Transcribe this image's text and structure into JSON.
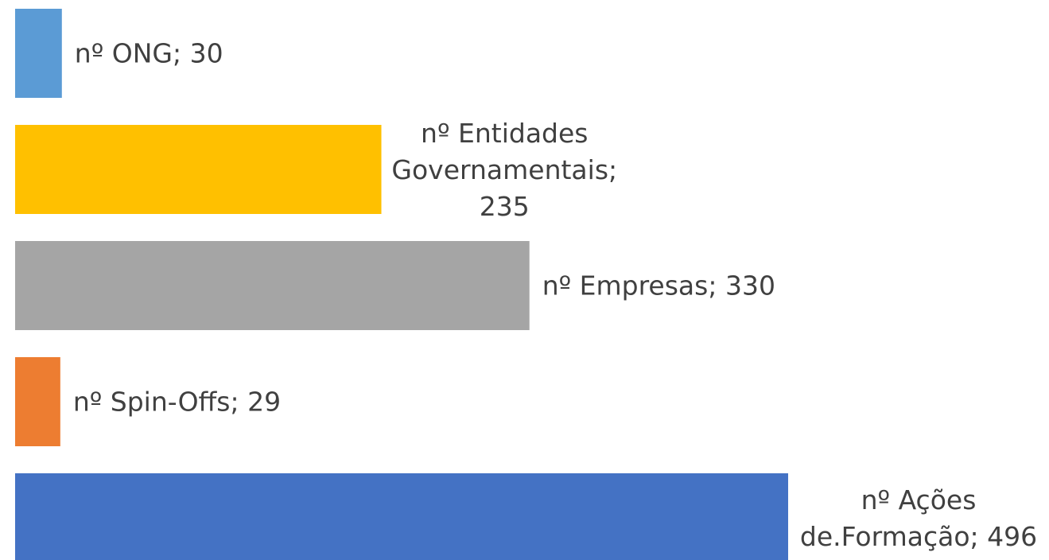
{
  "chart_data": {
    "type": "bar",
    "orientation": "horizontal",
    "title": "",
    "xlabel": "",
    "ylabel": "",
    "axes_visible": false,
    "grid": false,
    "legend": "none",
    "xlim": [
      0,
      496
    ],
    "categories": [
      "nº ONG",
      "nº Entidades Governamentais",
      "nº Empresas",
      "nº Spin-Offs",
      "nº Ações de.Formação"
    ],
    "values": [
      30,
      235,
      330,
      29,
      496
    ],
    "colors": [
      "#5B9BD5",
      "#FFC000",
      "#A5A5A5",
      "#ED7D31",
      "#4472C4"
    ],
    "data_labels": [
      [
        "nº ONG; 30"
      ],
      [
        "nº Entidades",
        "Governamentais;",
        "235"
      ],
      [
        "nº Empresas; 330"
      ],
      [
        "nº Spin-Offs; 29"
      ],
      [
        "nº Ações",
        "de.Formação; 496"
      ]
    ]
  }
}
